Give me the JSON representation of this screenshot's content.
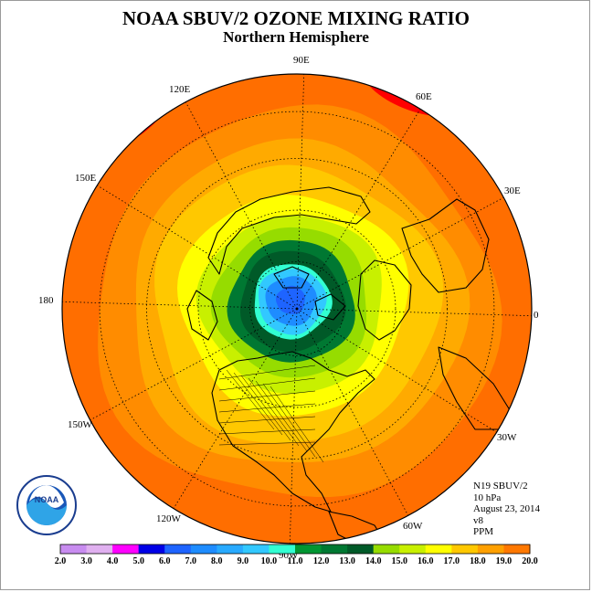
{
  "title": "NOAA SBUV/2 OZONE MIXING RATIO",
  "subtitle": "Northern Hemisphere",
  "info": {
    "satellite": "N19 SBUV/2",
    "level": "10 hPa",
    "date": "August 23, 2014",
    "version": "v8",
    "units": "PPM"
  },
  "logo_text": "NOAA",
  "longitude_labels": [
    {
      "text": "90E"
    },
    {
      "text": "60E"
    },
    {
      "text": "30E"
    },
    {
      "text": "0"
    },
    {
      "text": "30W"
    },
    {
      "text": "60W"
    },
    {
      "text": "90W"
    },
    {
      "text": "120W"
    },
    {
      "text": "150W"
    },
    {
      "text": "180"
    },
    {
      "text": "150E"
    },
    {
      "text": "120E"
    }
  ],
  "colorbar": {
    "ticks": [
      "2.0",
      "3.0",
      "4.0",
      "5.0",
      "6.0",
      "7.0",
      "8.0",
      "9.0",
      "10.0",
      "11.0",
      "12.0",
      "13.0",
      "14.0",
      "15.0",
      "16.0",
      "17.0",
      "18.0",
      "19.0",
      "20.0"
    ],
    "colors": [
      "#c88cf0",
      "#e0b0f0",
      "#ff00ff",
      "#0000e6",
      "#1e64ff",
      "#1e8cff",
      "#28aaff",
      "#32c8ff",
      "#32ffd2",
      "#009632",
      "#007832",
      "#005a28",
      "#96dc00",
      "#c8f000",
      "#ffff00",
      "#ffc800",
      "#ffa000",
      "#ff7800",
      "#ff0000",
      "#8c5a3c"
    ]
  },
  "contours": [
    {
      "color": "#ff6e00",
      "r": 1.0
    },
    {
      "color": "#ff8c00",
      "r": 0.83
    },
    {
      "color": "#ffaa00",
      "r": 0.69
    },
    {
      "color": "#ffc800",
      "r": 0.59
    },
    {
      "color": "#ffff00",
      "r": 0.47
    },
    {
      "color": "#c8f000",
      "r": 0.38
    },
    {
      "color": "#96dc00",
      "r": 0.32
    },
    {
      "color": "#007832",
      "r": 0.26
    },
    {
      "color": "#005a28",
      "r": 0.215
    },
    {
      "color": "#32ffd2",
      "r": 0.16
    },
    {
      "color": "#32c8ff",
      "r": 0.14
    },
    {
      "color": "#1e8cff",
      "r": 0.105
    },
    {
      "color": "#1e64ff",
      "r": 0.06
    }
  ]
}
